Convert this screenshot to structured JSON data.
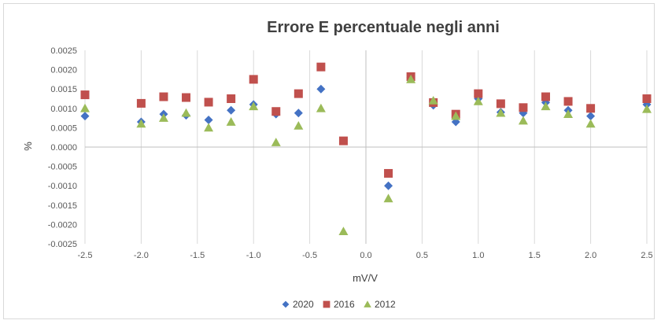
{
  "chart_data": {
    "type": "scatter",
    "title": "Errore E percentuale negli anni",
    "xlabel": "mV/V",
    "ylabel": "%",
    "xlim": [
      -2.5,
      2.5
    ],
    "ylim": [
      -0.0025,
      0.0025
    ],
    "x_ticks": [
      "-2.5",
      "-2.0",
      "-1.5",
      "-1.0",
      "-0.5",
      "0.0",
      "0.5",
      "1.0",
      "1.5",
      "2.0",
      "2.5"
    ],
    "y_ticks": [
      "0.0025",
      "0.0020",
      "0.0015",
      "0.0010",
      "0.0005",
      "0.0000",
      "-0.0005",
      "-0.0010",
      "-0.0015",
      "-0.0020",
      "-0.0025"
    ],
    "grid": "vertical",
    "legend_position": "bottom",
    "series": [
      {
        "name": "2020",
        "marker": "diamond",
        "color": "#4472c4",
        "points": [
          [
            -2.5,
            0.0008
          ],
          [
            -2.0,
            0.00065
          ],
          [
            -1.8,
            0.00085
          ],
          [
            -1.6,
            0.00082
          ],
          [
            -1.4,
            0.0007
          ],
          [
            -1.2,
            0.00095
          ],
          [
            -1.0,
            0.0011
          ],
          [
            -0.8,
            0.00085
          ],
          [
            -0.6,
            0.00088
          ],
          [
            -0.4,
            0.0015
          ],
          [
            0.2,
            -0.001
          ],
          [
            0.4,
            0.0018
          ],
          [
            0.6,
            0.00108
          ],
          [
            0.8,
            0.00065
          ],
          [
            1.0,
            0.00125
          ],
          [
            1.2,
            0.0009
          ],
          [
            1.4,
            0.00088
          ],
          [
            1.6,
            0.00115
          ],
          [
            1.8,
            0.00095
          ],
          [
            2.0,
            0.0008
          ],
          [
            2.5,
            0.0011
          ]
        ]
      },
      {
        "name": "2016",
        "marker": "square",
        "color": "#c0504d",
        "points": [
          [
            -2.5,
            0.00135
          ],
          [
            -2.0,
            0.00113
          ],
          [
            -1.8,
            0.0013
          ],
          [
            -1.6,
            0.00128
          ],
          [
            -1.4,
            0.00116
          ],
          [
            -1.2,
            0.00125
          ],
          [
            -1.0,
            0.00175
          ],
          [
            -0.8,
            0.00092
          ],
          [
            -0.6,
            0.00138
          ],
          [
            -0.4,
            0.00207
          ],
          [
            -0.2,
            0.00016
          ],
          [
            0.2,
            -0.00068
          ],
          [
            0.4,
            0.00182
          ],
          [
            0.6,
            0.00115
          ],
          [
            0.8,
            0.00085
          ],
          [
            1.0,
            0.00138
          ],
          [
            1.2,
            0.00112
          ],
          [
            1.4,
            0.00102
          ],
          [
            1.6,
            0.0013
          ],
          [
            1.8,
            0.00118
          ],
          [
            2.0,
            0.001
          ],
          [
            2.5,
            0.00125
          ]
        ]
      },
      {
        "name": "2012",
        "marker": "triangle",
        "color": "#9bbb59",
        "points": [
          [
            -2.5,
            0.001
          ],
          [
            -2.0,
            0.0006
          ],
          [
            -1.8,
            0.00075
          ],
          [
            -1.6,
            0.00088
          ],
          [
            -1.4,
            0.0005
          ],
          [
            -1.2,
            0.00065
          ],
          [
            -1.0,
            0.00105
          ],
          [
            -0.8,
            0.00012
          ],
          [
            -0.6,
            0.00055
          ],
          [
            -0.4,
            0.001
          ],
          [
            -0.2,
            -0.00218
          ],
          [
            0.2,
            -0.00133
          ],
          [
            0.4,
            0.00175
          ],
          [
            0.6,
            0.0012
          ],
          [
            0.8,
            0.0008
          ],
          [
            1.0,
            0.00118
          ],
          [
            1.2,
            0.00088
          ],
          [
            1.4,
            0.00068
          ],
          [
            1.6,
            0.00105
          ],
          [
            1.8,
            0.00085
          ],
          [
            2.0,
            0.0006
          ],
          [
            2.5,
            0.00098
          ]
        ]
      }
    ]
  }
}
